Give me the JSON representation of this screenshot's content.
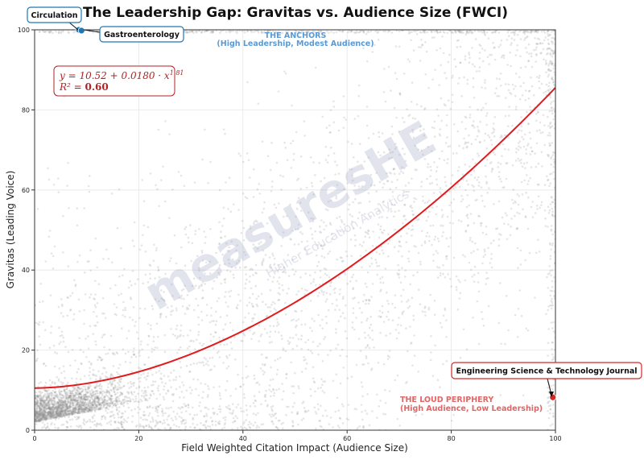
{
  "chart_data": {
    "type": "scatter",
    "title": "The Leadership Gap: Gravitas vs. Audience Size (FWCI)",
    "xlabel": "Field Weighted Citation Impact (Audience Size)",
    "ylabel": "Gravitas (Leading Voice)",
    "xlim": [
      0,
      100
    ],
    "ylim": [
      0,
      100
    ],
    "xticks": [
      "0",
      "20",
      "40",
      "60",
      "80",
      "100"
    ],
    "yticks": [
      "0",
      "20",
      "40",
      "60",
      "80",
      "100"
    ],
    "grid": true,
    "fit": {
      "intercept": 10.52,
      "coef": 0.018,
      "exponent": 1.81,
      "equation_line1": "y = 10.52 + 0.0180 · x",
      "equation_exp": "1.81",
      "equation_line2_label": "R² = ",
      "equation_line2_value": "0.60",
      "color": "#e31a1c"
    },
    "highlighted": [
      {
        "name": "Circulation",
        "x": 8.5,
        "y": 100,
        "color": "#1f77b4"
      },
      {
        "name": "Gastroenterology",
        "x": 9.0,
        "y": 99.8,
        "color": "#1f77b4"
      },
      {
        "name": "Engineering Science & Technology Journal",
        "x": 99.5,
        "y": 8.2,
        "color": "#d62728"
      }
    ],
    "zones": [
      {
        "line1": "THE ANCHORS",
        "line2": "(High Leadership, Modest Audience)",
        "color": "#5b9bd5"
      },
      {
        "line1": "THE LOUD PERIPHERY",
        "line2": "(High Audience, Low Leadership)",
        "color": "#e06666"
      }
    ],
    "point_color": "#8c8c8c",
    "n_background_points": 5200
  },
  "watermark": {
    "brand_a": "measures",
    "brand_b": "HE",
    "tagline": "Higher Education Analytics"
  }
}
